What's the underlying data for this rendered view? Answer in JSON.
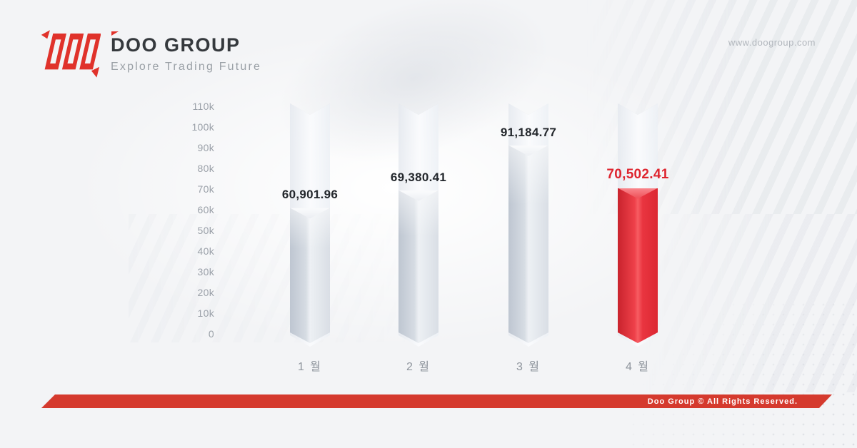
{
  "brand": {
    "name": "DOO GROUP",
    "tagline": "Explore Trading Future",
    "url": "www.doogroup.com"
  },
  "colors": {
    "brand_red": "#E0322B",
    "footer_red": "#D53A2E",
    "highlight_red": "#E8323C",
    "bar_gray": "#D9DEE5",
    "text_dark": "#35393D",
    "text_gray": "#9AA0A6",
    "value_dark": "#23272C",
    "value_red": "#DE242E"
  },
  "chart_data": {
    "type": "bar",
    "categories": [
      "1 월",
      "2 월",
      "3 월",
      "4 월"
    ],
    "values": [
      60901.96,
      69380.41,
      91184.77,
      70502.41
    ],
    "value_labels": [
      "60,901.96",
      "69,380.41",
      "91,184.77",
      "70,502.41"
    ],
    "highlight_index": 3,
    "title": "",
    "xlabel": "",
    "ylabel": "",
    "ylim": [
      0,
      110000
    ],
    "grid": false,
    "legend": "none",
    "yticks": [
      {
        "label": "110k",
        "value": 110000
      },
      {
        "label": "100k",
        "value": 100000
      },
      {
        "label": "90k",
        "value": 90000
      },
      {
        "label": "80k",
        "value": 80000
      },
      {
        "label": "70k",
        "value": 70000
      },
      {
        "label": "60k",
        "value": 60000
      },
      {
        "label": "50k",
        "value": 50000
      },
      {
        "label": "40k",
        "value": 40000
      },
      {
        "label": "30k",
        "value": 30000
      },
      {
        "label": "20k",
        "value": 20000
      },
      {
        "label": "10k",
        "value": 10000
      },
      {
        "label": "0",
        "value": 0
      }
    ]
  },
  "footer": {
    "text": "Doo Group © All Rights Reserved."
  }
}
